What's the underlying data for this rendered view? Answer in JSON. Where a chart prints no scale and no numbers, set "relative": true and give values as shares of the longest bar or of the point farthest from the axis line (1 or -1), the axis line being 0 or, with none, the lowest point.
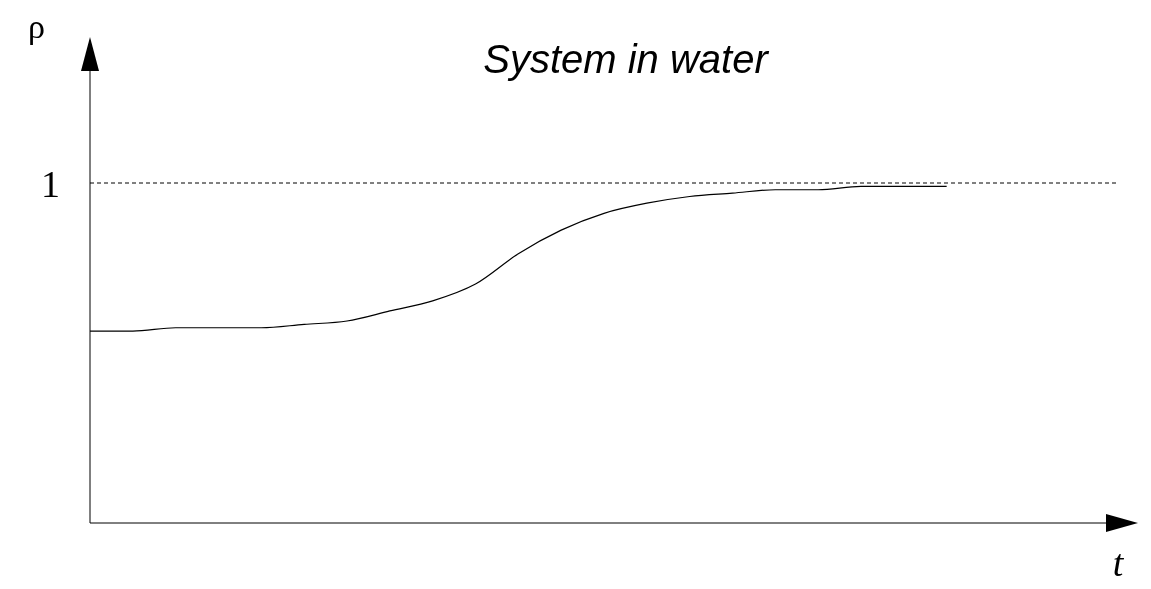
{
  "chart_data": {
    "type": "line",
    "title": "System in water",
    "xlabel": "t",
    "ylabel": "ρ",
    "relative": true,
    "categories": [
      null,
      null,
      null,
      null,
      null,
      null,
      null,
      null,
      null,
      null,
      null,
      null,
      null,
      null,
      null,
      null,
      null,
      null,
      null,
      null,
      null,
      null,
      null,
      null,
      null
    ],
    "series": [
      {
        "color": "#000000",
        "values": [
          0.57,
          0.57,
          0.58,
          0.58,
          0.58,
          0.59,
          0.6,
          0.63,
          0.66,
          0.71,
          0.8,
          0.87,
          0.92,
          0.95,
          0.97,
          0.98,
          0.99,
          0.99,
          1,
          1,
          1,
          null,
          null,
          null,
          null
        ]
      }
    ],
    "ref_lines": [
      {
        "axis": "y",
        "value": 1.01,
        "label": "1",
        "line_style": "dashed",
        "color": "#000000"
      }
    ],
    "grid": false,
    "legend": false,
    "marker": "none",
    "line_style": "solid"
  }
}
